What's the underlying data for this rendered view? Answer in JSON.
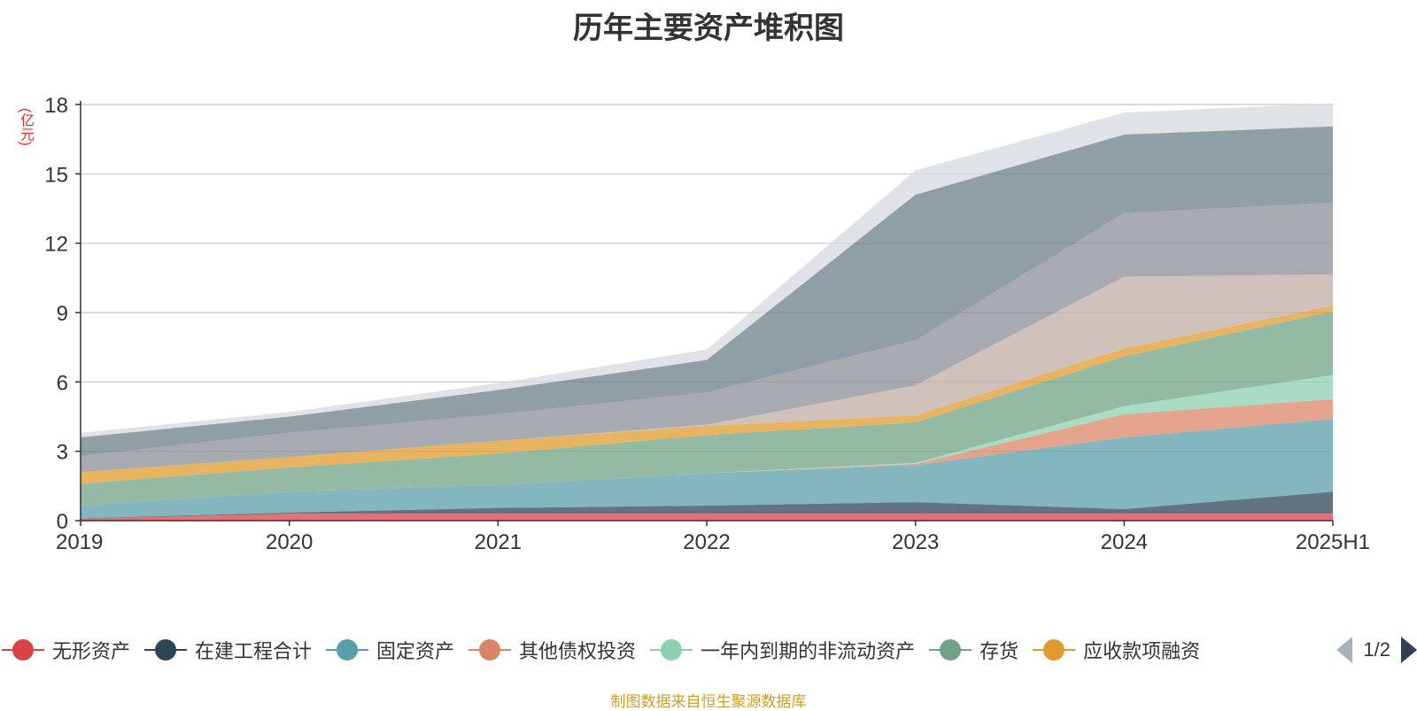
{
  "title": "历年主要资产堆积图",
  "unit_label": "(亿元)",
  "source": "制图数据来自恒生聚源数据库",
  "pager": {
    "text": "1/2"
  },
  "chart_data": {
    "type": "area",
    "stacked": true,
    "categories": [
      "2019",
      "2020",
      "2021",
      "2022",
      "2023",
      "2024",
      "2025H1"
    ],
    "ylim": [
      0,
      18
    ],
    "yticks": [
      0,
      3,
      6,
      9,
      12,
      15,
      18
    ],
    "grid": true,
    "legend_position": "bottom",
    "series": [
      {
        "name": "无形资产",
        "color": "#d94343",
        "values": [
          0.08,
          0.3,
          0.3,
          0.3,
          0.3,
          0.3,
          0.3
        ]
      },
      {
        "name": "在建工程合计",
        "color": "#2e4556",
        "values": [
          0.02,
          0.05,
          0.25,
          0.35,
          0.5,
          0.2,
          0.95
        ]
      },
      {
        "name": "固定资产",
        "color": "#5b9eab",
        "values": [
          0.55,
          0.9,
          1.0,
          1.4,
          1.6,
          3.1,
          3.15
        ]
      },
      {
        "name": "其他债权投资",
        "color": "#d98466",
        "values": [
          0,
          0,
          0,
          0,
          0.05,
          1.0,
          0.85
        ]
      },
      {
        "name": "一年内到期的非流动资产",
        "color": "#8ecfb2",
        "values": [
          0,
          0,
          0,
          0,
          0.05,
          0.35,
          1.05
        ]
      },
      {
        "name": "存货",
        "color": "#70a386",
        "values": [
          0.95,
          1.05,
          1.35,
          1.65,
          1.75,
          2.15,
          2.75
        ]
      },
      {
        "name": "应收款项融资",
        "color": "#e09b2c",
        "values": [
          0.5,
          0.45,
          0.55,
          0.4,
          0.3,
          0.35,
          0.25
        ]
      },
      {
        "name": "",
        "color": "#c2aca4",
        "values": [
          0,
          0,
          0,
          0.05,
          1.3,
          3.1,
          1.35
        ]
      },
      {
        "name": "",
        "color": "#8a8f97",
        "values": [
          0.7,
          1.05,
          1.15,
          1.4,
          1.95,
          2.75,
          3.1
        ]
      },
      {
        "name": "",
        "color": "#6b7d88",
        "values": [
          0.8,
          0.7,
          1.05,
          1.4,
          6.3,
          3.4,
          3.3
        ]
      },
      {
        "name": "",
        "color": "#d4d8de",
        "values": [
          0.2,
          0.2,
          0.3,
          0.45,
          1.05,
          0.95,
          1.0
        ]
      }
    ]
  },
  "legend": {
    "items": [
      {
        "label": "无形资产",
        "color": "#d94343"
      },
      {
        "label": "在建工程合计",
        "color": "#2e4556"
      },
      {
        "label": "固定资产",
        "color": "#5b9eab"
      },
      {
        "label": "其他债权投资",
        "color": "#d98466"
      },
      {
        "label": "一年内到期的非流动资产",
        "color": "#8ecfb2"
      },
      {
        "label": "存货",
        "color": "#70a386"
      },
      {
        "label": "应收款项融资",
        "color": "#e09b2c"
      }
    ]
  }
}
